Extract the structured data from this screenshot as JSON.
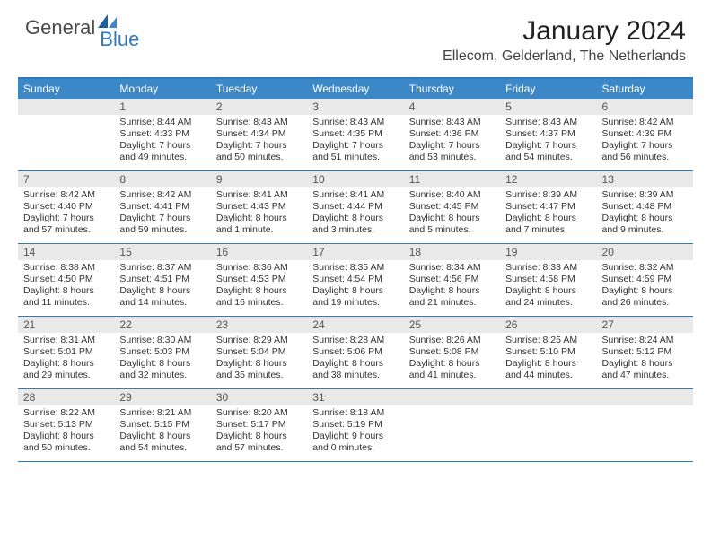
{
  "brand": {
    "text1": "General",
    "text2": "Blue",
    "color1": "#4a4a4a",
    "color2": "#2f7abf"
  },
  "title": "January 2024",
  "location": "Ellecom, Gelderland, The Netherlands",
  "colors": {
    "header_bg": "#3b87c8",
    "header_border": "#2f7abf",
    "daynum_bg": "#e9e9e9",
    "text": "#333333"
  },
  "day_headers": [
    "Sunday",
    "Monday",
    "Tuesday",
    "Wednesday",
    "Thursday",
    "Friday",
    "Saturday"
  ],
  "weeks": [
    [
      null,
      {
        "n": "1",
        "sr": "8:44 AM",
        "ss": "4:33 PM",
        "dl": "7 hours and 49 minutes."
      },
      {
        "n": "2",
        "sr": "8:43 AM",
        "ss": "4:34 PM",
        "dl": "7 hours and 50 minutes."
      },
      {
        "n": "3",
        "sr": "8:43 AM",
        "ss": "4:35 PM",
        "dl": "7 hours and 51 minutes."
      },
      {
        "n": "4",
        "sr": "8:43 AM",
        "ss": "4:36 PM",
        "dl": "7 hours and 53 minutes."
      },
      {
        "n": "5",
        "sr": "8:43 AM",
        "ss": "4:37 PM",
        "dl": "7 hours and 54 minutes."
      },
      {
        "n": "6",
        "sr": "8:42 AM",
        "ss": "4:39 PM",
        "dl": "7 hours and 56 minutes."
      }
    ],
    [
      {
        "n": "7",
        "sr": "8:42 AM",
        "ss": "4:40 PM",
        "dl": "7 hours and 57 minutes."
      },
      {
        "n": "8",
        "sr": "8:42 AM",
        "ss": "4:41 PM",
        "dl": "7 hours and 59 minutes."
      },
      {
        "n": "9",
        "sr": "8:41 AM",
        "ss": "4:43 PM",
        "dl": "8 hours and 1 minute."
      },
      {
        "n": "10",
        "sr": "8:41 AM",
        "ss": "4:44 PM",
        "dl": "8 hours and 3 minutes."
      },
      {
        "n": "11",
        "sr": "8:40 AM",
        "ss": "4:45 PM",
        "dl": "8 hours and 5 minutes."
      },
      {
        "n": "12",
        "sr": "8:39 AM",
        "ss": "4:47 PM",
        "dl": "8 hours and 7 minutes."
      },
      {
        "n": "13",
        "sr": "8:39 AM",
        "ss": "4:48 PM",
        "dl": "8 hours and 9 minutes."
      }
    ],
    [
      {
        "n": "14",
        "sr": "8:38 AM",
        "ss": "4:50 PM",
        "dl": "8 hours and 11 minutes."
      },
      {
        "n": "15",
        "sr": "8:37 AM",
        "ss": "4:51 PM",
        "dl": "8 hours and 14 minutes."
      },
      {
        "n": "16",
        "sr": "8:36 AM",
        "ss": "4:53 PM",
        "dl": "8 hours and 16 minutes."
      },
      {
        "n": "17",
        "sr": "8:35 AM",
        "ss": "4:54 PM",
        "dl": "8 hours and 19 minutes."
      },
      {
        "n": "18",
        "sr": "8:34 AM",
        "ss": "4:56 PM",
        "dl": "8 hours and 21 minutes."
      },
      {
        "n": "19",
        "sr": "8:33 AM",
        "ss": "4:58 PM",
        "dl": "8 hours and 24 minutes."
      },
      {
        "n": "20",
        "sr": "8:32 AM",
        "ss": "4:59 PM",
        "dl": "8 hours and 26 minutes."
      }
    ],
    [
      {
        "n": "21",
        "sr": "8:31 AM",
        "ss": "5:01 PM",
        "dl": "8 hours and 29 minutes."
      },
      {
        "n": "22",
        "sr": "8:30 AM",
        "ss": "5:03 PM",
        "dl": "8 hours and 32 minutes."
      },
      {
        "n": "23",
        "sr": "8:29 AM",
        "ss": "5:04 PM",
        "dl": "8 hours and 35 minutes."
      },
      {
        "n": "24",
        "sr": "8:28 AM",
        "ss": "5:06 PM",
        "dl": "8 hours and 38 minutes."
      },
      {
        "n": "25",
        "sr": "8:26 AM",
        "ss": "5:08 PM",
        "dl": "8 hours and 41 minutes."
      },
      {
        "n": "26",
        "sr": "8:25 AM",
        "ss": "5:10 PM",
        "dl": "8 hours and 44 minutes."
      },
      {
        "n": "27",
        "sr": "8:24 AM",
        "ss": "5:12 PM",
        "dl": "8 hours and 47 minutes."
      }
    ],
    [
      {
        "n": "28",
        "sr": "8:22 AM",
        "ss": "5:13 PM",
        "dl": "8 hours and 50 minutes."
      },
      {
        "n": "29",
        "sr": "8:21 AM",
        "ss": "5:15 PM",
        "dl": "8 hours and 54 minutes."
      },
      {
        "n": "30",
        "sr": "8:20 AM",
        "ss": "5:17 PM",
        "dl": "8 hours and 57 minutes."
      },
      {
        "n": "31",
        "sr": "8:18 AM",
        "ss": "5:19 PM",
        "dl": "9 hours and 0 minutes."
      },
      null,
      null,
      null
    ]
  ],
  "labels": {
    "sunrise": "Sunrise:",
    "sunset": "Sunset:",
    "daylight": "Daylight:"
  }
}
